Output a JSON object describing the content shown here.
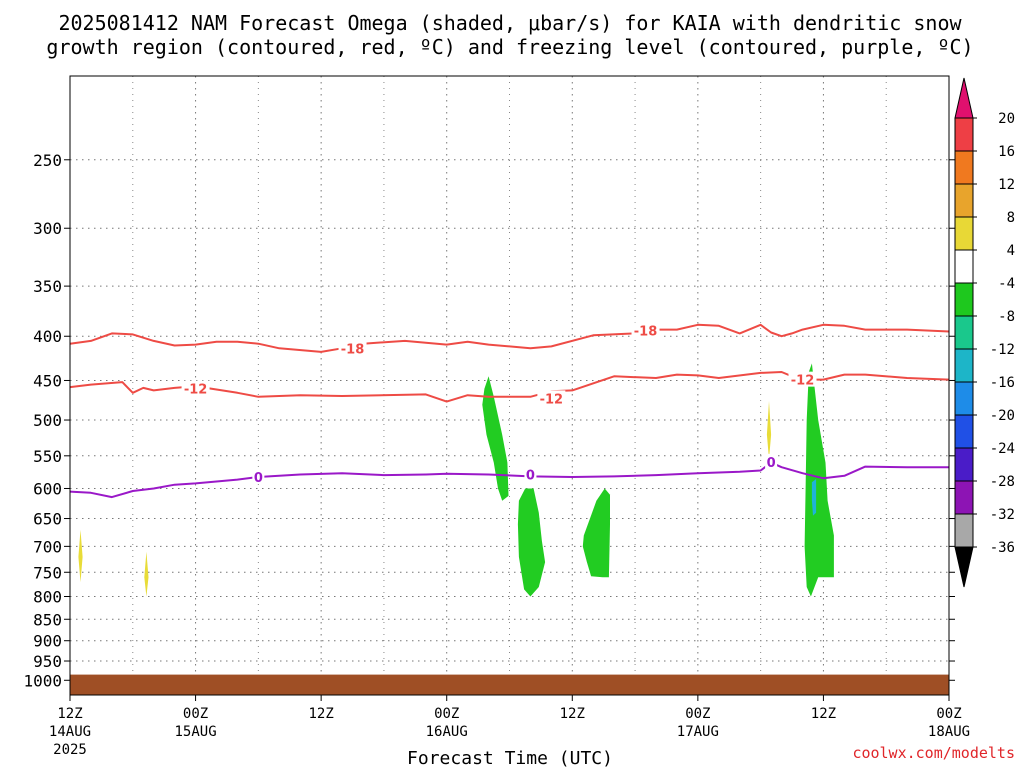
{
  "title": {
    "line1": "2025081412 NAM Forecast Omega (shaded, μbar/s) for KAIA with dendritic snow",
    "line2": "growth region (contoured, red, ºC) and freezing level (contoured, purple, ºC)"
  },
  "credit": "coolwx.com/modelts",
  "chart_data": {
    "type": "time-height cross section",
    "xlabel": "Forecast Time (UTC)",
    "x_range_hours": [
      0,
      84
    ],
    "x_ticks": [
      {
        "hour": 0,
        "label1": "12Z",
        "label2": "14AUG",
        "label3": "2025"
      },
      {
        "hour": 12,
        "label1": "00Z",
        "label2": "15AUG",
        "label3": ""
      },
      {
        "hour": 24,
        "label1": "12Z",
        "label2": "",
        "label3": ""
      },
      {
        "hour": 36,
        "label1": "00Z",
        "label2": "16AUG",
        "label3": ""
      },
      {
        "hour": 48,
        "label1": "12Z",
        "label2": "",
        "label3": ""
      },
      {
        "hour": 60,
        "label1": "00Z",
        "label2": "17AUG",
        "label3": ""
      },
      {
        "hour": 72,
        "label1": "12Z",
        "label2": "",
        "label3": ""
      },
      {
        "hour": 84,
        "label1": "00Z",
        "label2": "18AUG",
        "label3": ""
      }
    ],
    "x_minor_gridlines_hours": [
      6,
      18,
      30,
      42,
      54,
      66,
      78
    ],
    "y_ticks_hpa": [
      250,
      300,
      350,
      400,
      450,
      500,
      550,
      600,
      650,
      700,
      750,
      800,
      850,
      900,
      950,
      1000
    ],
    "y_log_pressure": true,
    "y_range_hpa": [
      200,
      1040
    ],
    "grid": true,
    "contours": [
      {
        "value": -18,
        "label": "-18",
        "color": "#ee4b45",
        "points": [
          [
            0,
            408
          ],
          [
            2,
            405
          ],
          [
            4,
            397
          ],
          [
            6,
            398
          ],
          [
            8,
            405
          ],
          [
            10,
            410
          ],
          [
            12,
            409
          ],
          [
            14,
            406
          ],
          [
            16,
            406
          ],
          [
            18,
            408
          ],
          [
            20,
            413
          ],
          [
            24,
            417
          ],
          [
            26,
            413
          ],
          [
            28,
            408
          ],
          [
            32,
            405
          ],
          [
            36,
            409
          ],
          [
            38,
            406
          ],
          [
            40,
            409
          ],
          [
            42,
            411
          ],
          [
            44,
            413
          ],
          [
            46,
            411
          ],
          [
            50,
            399
          ],
          [
            54,
            397
          ],
          [
            56,
            393
          ],
          [
            58,
            393
          ],
          [
            60,
            388
          ],
          [
            62,
            389
          ],
          [
            64,
            397
          ],
          [
            66,
            388
          ],
          [
            67,
            396
          ],
          [
            68,
            400
          ],
          [
            69,
            397
          ],
          [
            70,
            393
          ],
          [
            72,
            388
          ],
          [
            74,
            389
          ],
          [
            76,
            393
          ],
          [
            80,
            393
          ],
          [
            84,
            395
          ]
        ],
        "label_positions": [
          [
            27,
            413
          ],
          [
            55,
            394
          ]
        ]
      },
      {
        "value": -12,
        "label": "-12",
        "color": "#ee4b45",
        "points": [
          [
            0,
            458
          ],
          [
            2,
            455
          ],
          [
            5,
            452
          ],
          [
            6,
            465
          ],
          [
            7,
            459
          ],
          [
            8,
            462
          ],
          [
            10,
            459
          ],
          [
            12,
            457
          ],
          [
            14,
            461
          ],
          [
            16,
            465
          ],
          [
            18,
            470
          ],
          [
            22,
            468
          ],
          [
            26,
            469
          ],
          [
            34,
            467
          ],
          [
            36,
            476
          ],
          [
            38,
            468
          ],
          [
            40,
            470
          ],
          [
            44,
            470
          ],
          [
            46,
            463
          ],
          [
            48,
            462
          ],
          [
            52,
            445
          ],
          [
            56,
            447
          ],
          [
            58,
            443
          ],
          [
            60,
            444
          ],
          [
            62,
            447
          ],
          [
            66,
            441
          ],
          [
            68,
            440
          ],
          [
            69,
            445
          ],
          [
            70,
            449
          ],
          [
            72,
            449
          ],
          [
            74,
            443
          ],
          [
            76,
            443
          ],
          [
            80,
            447
          ],
          [
            84,
            449
          ]
        ],
        "label_positions": [
          [
            12,
            460
          ],
          [
            46,
            472
          ],
          [
            70,
            449
          ]
        ]
      },
      {
        "value": 0,
        "label": "0",
        "color": "#9a18c8",
        "points": [
          [
            0,
            605
          ],
          [
            2,
            607
          ],
          [
            4,
            614
          ],
          [
            6,
            604
          ],
          [
            8,
            600
          ],
          [
            10,
            594
          ],
          [
            12,
            592
          ],
          [
            14,
            589
          ],
          [
            16,
            586
          ],
          [
            18,
            582
          ],
          [
            22,
            578
          ],
          [
            26,
            576
          ],
          [
            30,
            579
          ],
          [
            34,
            578
          ],
          [
            36,
            577
          ],
          [
            40,
            578
          ],
          [
            44,
            581
          ],
          [
            48,
            582
          ],
          [
            52,
            581
          ],
          [
            56,
            579
          ],
          [
            60,
            576
          ],
          [
            64,
            574
          ],
          [
            66,
            572
          ],
          [
            67,
            560
          ],
          [
            68,
            567
          ],
          [
            70,
            576
          ],
          [
            72,
            584
          ],
          [
            74,
            580
          ],
          [
            76,
            566
          ],
          [
            80,
            567
          ],
          [
            84,
            567
          ]
        ],
        "label_positions": [
          [
            18,
            582
          ],
          [
            44,
            578
          ],
          [
            67,
            559
          ]
        ]
      }
    ],
    "omega_regions": [
      {
        "value_range": "-8 to -4",
        "color": "#22cc22",
        "polygon": [
          [
            39.6,
            460
          ],
          [
            40.0,
            445
          ],
          [
            40.5,
            470
          ],
          [
            41.3,
            520
          ],
          [
            41.8,
            560
          ],
          [
            41.9,
            612
          ],
          [
            41.3,
            620
          ],
          [
            40.9,
            600
          ],
          [
            40.5,
            560
          ],
          [
            39.8,
            520
          ],
          [
            39.4,
            480
          ]
        ]
      },
      {
        "value_range": "-8 to -4",
        "color": "#22cc22",
        "polygon": [
          [
            42.9,
            620
          ],
          [
            43.5,
            600
          ],
          [
            44.3,
            600
          ],
          [
            44.8,
            640
          ],
          [
            45.1,
            690
          ],
          [
            45.4,
            730
          ],
          [
            44.8,
            780
          ],
          [
            44.0,
            800
          ],
          [
            43.4,
            785
          ],
          [
            42.9,
            720
          ],
          [
            42.8,
            660
          ]
        ]
      },
      {
        "value_range": "-8 to -4",
        "color": "#22cc22",
        "polygon": [
          [
            49.1,
            680
          ],
          [
            50.3,
            620
          ],
          [
            51.1,
            600
          ],
          [
            51.6,
            610
          ],
          [
            51.6,
            660
          ],
          [
            51.5,
            760
          ],
          [
            50.9,
            760
          ],
          [
            49.8,
            758
          ],
          [
            49.4,
            730
          ],
          [
            49.0,
            700
          ]
        ]
      },
      {
        "value_range": "-8 to -4",
        "color": "#22cc22",
        "polygon": [
          [
            70.4,
            500
          ],
          [
            70.6,
            440
          ],
          [
            70.9,
            430
          ],
          [
            71.5,
            500
          ],
          [
            72.2,
            560
          ],
          [
            72.4,
            620
          ],
          [
            73.0,
            680
          ],
          [
            73.0,
            760
          ],
          [
            71.5,
            760
          ],
          [
            70.8,
            800
          ],
          [
            70.4,
            780
          ],
          [
            70.2,
            700
          ],
          [
            70.3,
            600
          ]
        ]
      },
      {
        "value_range": "-16 to -12",
        "color": "#1fb3d8",
        "polygon": [
          [
            70.9,
            590
          ],
          [
            71.3,
            585
          ],
          [
            71.3,
            640
          ],
          [
            71.0,
            645
          ],
          [
            70.9,
            620
          ]
        ]
      },
      {
        "value_range": "4 to 8",
        "color": "#e8dc38",
        "polygon": [
          [
            0.8,
            720
          ],
          [
            1.0,
            670
          ],
          [
            1.2,
            720
          ],
          [
            1.0,
            770
          ]
        ]
      },
      {
        "value_range": "4 to 8",
        "color": "#e8dc38",
        "polygon": [
          [
            7.1,
            760
          ],
          [
            7.3,
            710
          ],
          [
            7.5,
            760
          ],
          [
            7.3,
            800
          ]
        ]
      },
      {
        "value_range": "4 to 8",
        "color": "#e8dc38",
        "polygon": [
          [
            66.6,
            520
          ],
          [
            66.8,
            475
          ],
          [
            67.0,
            520
          ],
          [
            66.8,
            555
          ]
        ]
      }
    ],
    "ground_surface_hpa": 985,
    "ground_color": "#9f4f25",
    "colorbar": {
      "labels": [
        "20",
        "16",
        "12",
        "8",
        "4",
        "-4",
        "-8",
        "-12",
        "-16",
        "-20",
        "-24",
        "-28",
        "-32",
        "-36"
      ],
      "colors": [
        "#ee3f45",
        "#f0791f",
        "#e8a42c",
        "#e8d836",
        "#ffffff",
        "#1ec81e",
        "#1ac88c",
        "#1db5c8",
        "#1e8ce8",
        "#2050e6",
        "#4a1cc8",
        "#8d14b4",
        "#a8a8a8"
      ],
      "top_arrow_color": "#e0106e",
      "bottom_arrow_color": "#000000"
    }
  }
}
